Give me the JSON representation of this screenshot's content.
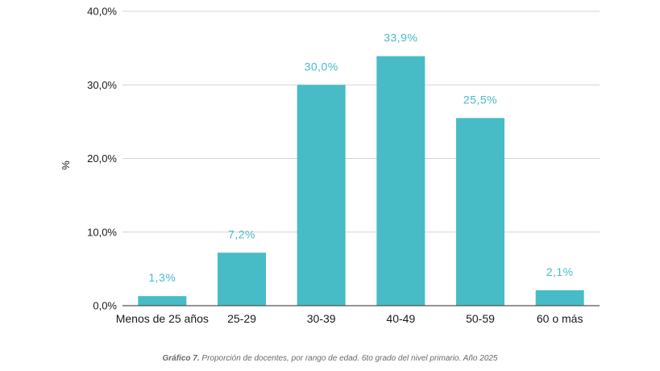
{
  "chart_data": {
    "type": "bar",
    "categories": [
      "Menos de 25 años",
      "25-29",
      "30-39",
      "40-49",
      "50-59",
      "60 o más"
    ],
    "values": [
      1.3,
      7.2,
      30.0,
      33.9,
      25.5,
      2.1
    ],
    "data_labels": [
      "1,3%",
      "7,2%",
      "30,0%",
      "33,9%",
      "25,5%",
      "2,1%"
    ],
    "ylabel": "%",
    "ylim": [
      0,
      40
    ],
    "yticks": [
      0,
      10,
      20,
      30,
      40
    ],
    "ytick_labels": [
      "0,0%",
      "10,0%",
      "20,0%",
      "30,0%",
      "40,0%"
    ],
    "grid": true,
    "bar_color": "#47bcc6",
    "label_color": "#47bcc6"
  },
  "caption": {
    "prefix": "Gráfico 7.",
    "text": " Proporción de docentes, por rango de edad. 6to grado del nivel primario. Año 2025"
  }
}
